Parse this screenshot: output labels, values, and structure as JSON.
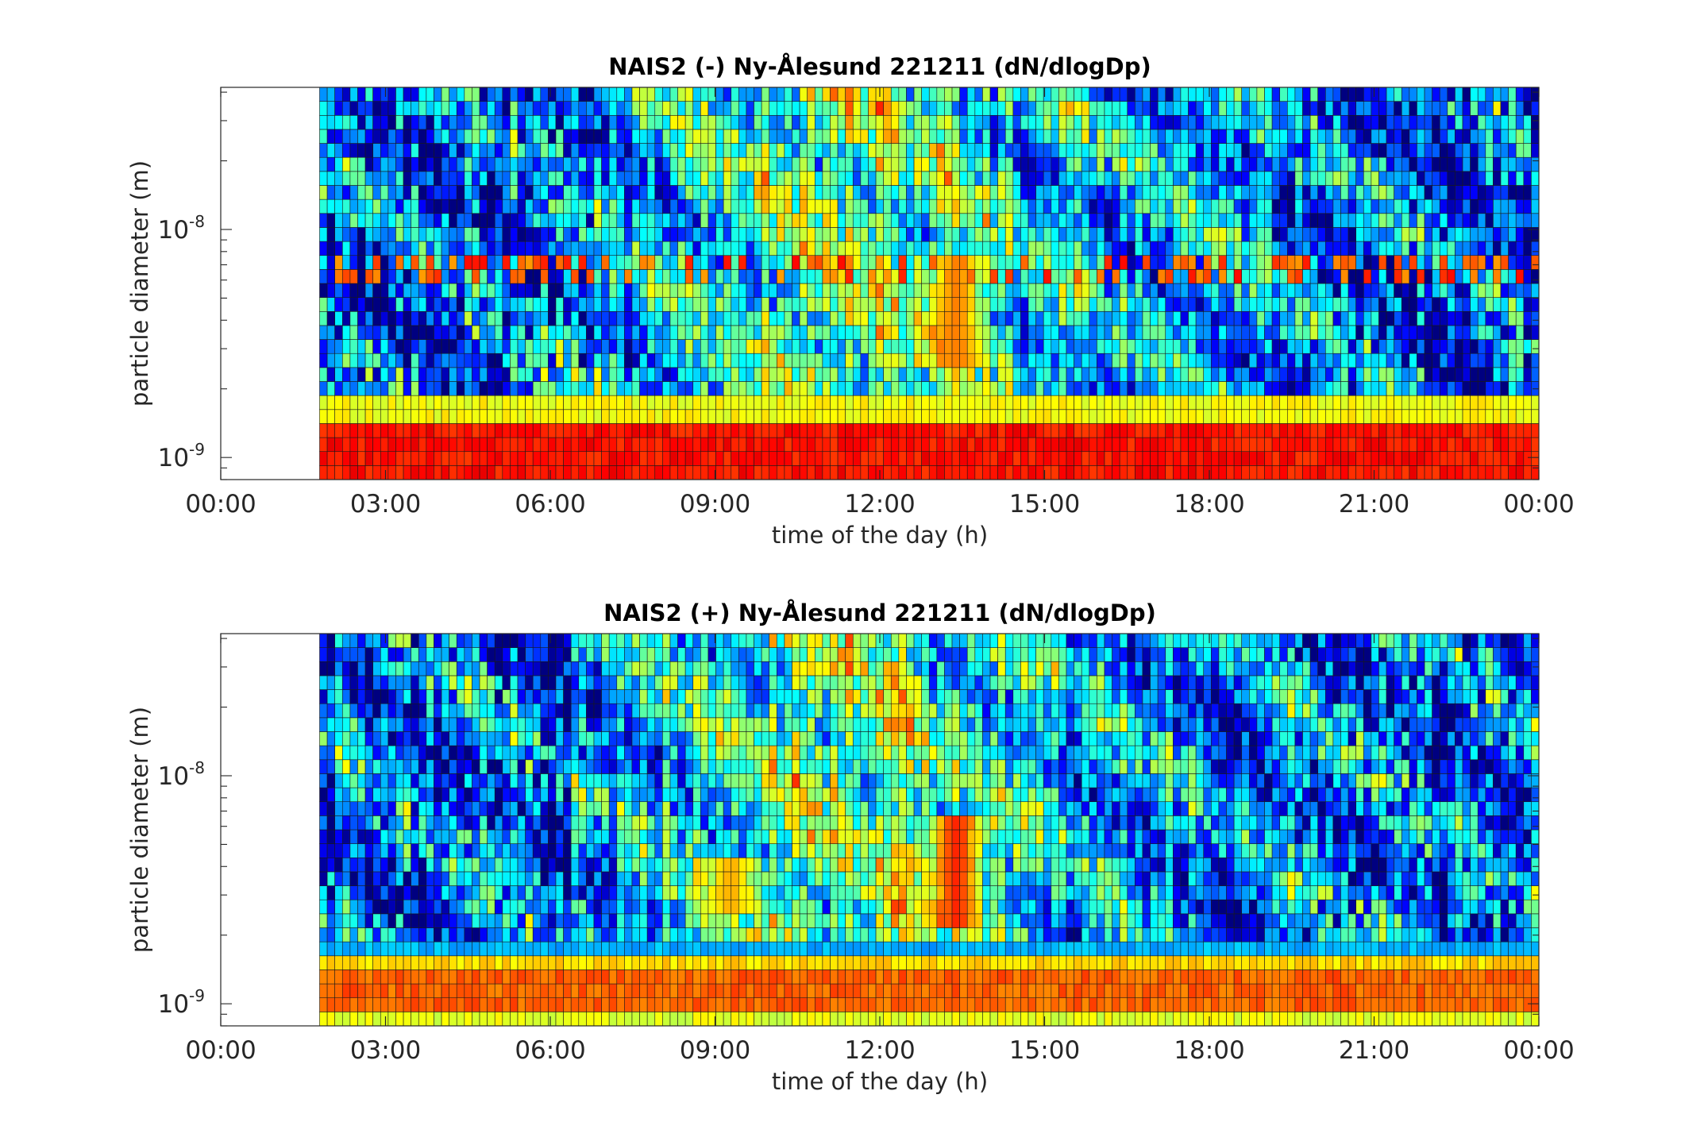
{
  "chart_data": [
    {
      "type": "heatmap",
      "title": "NAIS2 (-) Ny-Ålesund 221211 (dN/dlogDp)",
      "xlabel": "time of the day (h)",
      "ylabel": "particle diameter (m)",
      "x_tick_labels": [
        "00:00",
        "03:00",
        "06:00",
        "09:00",
        "12:00",
        "15:00",
        "18:00",
        "21:00",
        "00:00"
      ],
      "y_tick_labels": [
        {
          "base": "10",
          "exp": "-9"
        },
        {
          "base": "10",
          "exp": "-8"
        }
      ],
      "y_scale": "log",
      "xlim_hours": [
        0,
        24
      ],
      "ylim_m": [
        8e-10,
        4.2e-08
      ],
      "data_start_hour": 1.8,
      "colormap": "jet",
      "summary": {
        "bands": [
          {
            "dp_range_m": [
              8e-10,
              1.4e-09
            ],
            "level": 0.86
          },
          {
            "dp_range_m": [
              1.4e-09,
              1.8e-09
            ],
            "level": 0.62
          },
          {
            "dp_range_m": [
              1.8e-09,
              4.2e-08
            ],
            "level": 0.3
          }
        ],
        "hotspots": [
          {
            "hour": 13.4,
            "dp_range_m": [
              2.5e-09,
              8e-09
            ],
            "level": 0.75
          }
        ]
      }
    },
    {
      "type": "heatmap",
      "title": "NAIS2 (+) Ny-Ålesund 221211 (dN/dlogDp)",
      "xlabel": "time of the day (h)",
      "ylabel": "particle diameter (m)",
      "x_tick_labels": [
        "00:00",
        "03:00",
        "06:00",
        "09:00",
        "12:00",
        "15:00",
        "18:00",
        "21:00",
        "00:00"
      ],
      "y_tick_labels": [
        {
          "base": "10",
          "exp": "-9"
        },
        {
          "base": "10",
          "exp": "-8"
        }
      ],
      "y_scale": "log",
      "xlim_hours": [
        0,
        24
      ],
      "ylim_m": [
        8e-10,
        4.2e-08
      ],
      "data_start_hour": 1.8,
      "colormap": "jet",
      "summary": {
        "bands": [
          {
            "dp_range_m": [
              8e-10,
              9.5e-10
            ],
            "level": 0.6
          },
          {
            "dp_range_m": [
              9.5e-10,
              1.45e-09
            ],
            "level": 0.78
          },
          {
            "dp_range_m": [
              1.45e-09,
              1.65e-09
            ],
            "level": 0.66
          },
          {
            "dp_range_m": [
              1.65e-09,
              4.2e-08
            ],
            "level": 0.3
          }
        ],
        "hotspots": [
          {
            "hour": 13.4,
            "dp_range_m": [
              2.3e-09,
              7e-09
            ],
            "level": 0.84
          },
          {
            "hour": 9.3,
            "dp_range_m": [
              2.4e-09,
              4.2e-09
            ],
            "level": 0.7
          }
        ]
      }
    }
  ]
}
